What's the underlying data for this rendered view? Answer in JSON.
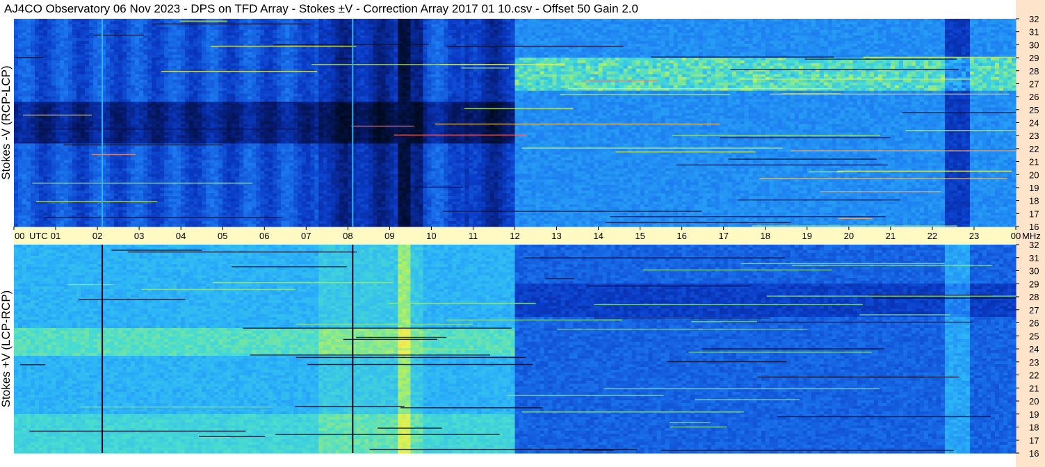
{
  "title": "AJ4CO Observatory  06 Nov 2023  -  DPS on TFD Array  -  Stokes ±V  -  Correction Array 2017 01 10.csv  -  Offset 50  Gain 2.0",
  "chart_data": {
    "type": "heatmap",
    "panels": [
      {
        "name": "top",
        "ylabel": "Stokes -V (RCP-LCP)",
        "ylim": [
          16,
          32
        ]
      },
      {
        "name": "bottom",
        "ylabel": "Stokes +V (LCP-RCP)",
        "ylim": [
          16,
          32
        ]
      }
    ],
    "x_ticks": [
      "00",
      "01",
      "02",
      "03",
      "04",
      "05",
      "06",
      "07",
      "08",
      "09",
      "10",
      "11",
      "12",
      "13",
      "14",
      "15",
      "16",
      "17",
      "18",
      "19",
      "20",
      "21",
      "22",
      "23",
      "00"
    ],
    "x_unit_left": "UTC",
    "x_unit_right": "MHz",
    "xlim": [
      0,
      24
    ],
    "y_ticks": [
      16,
      17,
      18,
      19,
      20,
      21,
      22,
      23,
      24,
      25,
      26,
      27,
      28,
      29,
      30,
      31,
      32
    ],
    "grid": false,
    "colors": {
      "background": "#ffffff",
      "axis_band": "#fff9c4",
      "right_margin": "#ffe4cc",
      "colormap": [
        "#000a1e",
        "#061a6e",
        "#0a3cc8",
        "#1c78f0",
        "#2cb4f8",
        "#48dcd0",
        "#b4f060",
        "#f0f050",
        "#ff6070"
      ]
    }
  }
}
